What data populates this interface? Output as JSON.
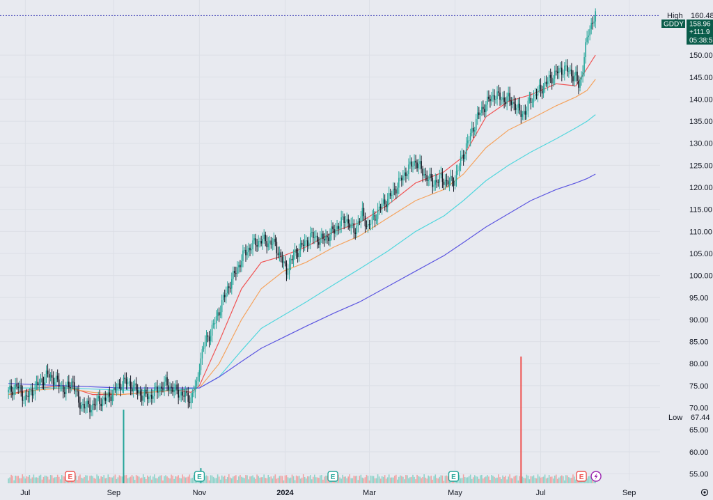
{
  "chart_data": {
    "type": "candlestick",
    "symbol": "GDDY",
    "y_axis_ticks": [
      "55.00",
      "60.00",
      "65.00",
      "70.00",
      "75.00",
      "80.00",
      "85.00",
      "90.00",
      "95.00",
      "100.00",
      "105.00",
      "110.00",
      "115.00",
      "120.00",
      "125.00",
      "130.00",
      "135.00",
      "140.00",
      "145.00",
      "150.00"
    ],
    "ylim": [
      53.5,
      162.5
    ],
    "x_axis_ticks": [
      {
        "label": "Jul",
        "day": 12,
        "bold": false
      },
      {
        "label": "Sep",
        "day": 75,
        "bold": false
      },
      {
        "label": "Nov",
        "day": 136,
        "bold": false
      },
      {
        "label": "2024",
        "day": 197,
        "bold": true
      },
      {
        "label": "Mar",
        "day": 257,
        "bold": false
      },
      {
        "label": "May",
        "day": 318,
        "bold": false
      },
      {
        "label": "Jul",
        "day": 379,
        "bold": false
      },
      {
        "label": "Sep",
        "day": 442,
        "bold": false
      }
    ],
    "xlim": [
      -6,
      464
    ],
    "high": {
      "label": "High",
      "value": "160.48",
      "numeric": 160.48
    },
    "low": {
      "label": "Low",
      "value": "67.44"
    },
    "last": {
      "value": "158.96",
      "change": "+111.9",
      "countdown": "05:38:5",
      "numeric": 158.96
    },
    "price_path": [
      [
        0,
        73.5
      ],
      [
        6,
        75
      ],
      [
        12,
        72
      ],
      [
        20,
        75
      ],
      [
        28,
        77.5
      ],
      [
        34,
        76
      ],
      [
        40,
        74
      ],
      [
        46,
        76
      ],
      [
        50,
        71
      ],
      [
        58,
        70
      ],
      [
        64,
        71.5
      ],
      [
        70,
        72
      ],
      [
        76,
        74
      ],
      [
        82,
        76
      ],
      [
        88,
        75
      ],
      [
        94,
        73
      ],
      [
        100,
        72.5
      ],
      [
        106,
        74
      ],
      [
        112,
        75.5
      ],
      [
        118,
        74
      ],
      [
        124,
        73
      ],
      [
        130,
        72
      ],
      [
        132,
        74
      ],
      [
        134,
        75
      ],
      [
        136,
        80
      ],
      [
        140,
        85
      ],
      [
        144,
        87
      ],
      [
        150,
        92
      ],
      [
        156,
        97
      ],
      [
        162,
        101
      ],
      [
        168,
        105
      ],
      [
        174,
        107
      ],
      [
        180,
        108
      ],
      [
        186,
        107.5
      ],
      [
        190,
        107
      ],
      [
        194,
        104
      ],
      [
        198,
        101
      ],
      [
        204,
        105
      ],
      [
        210,
        107
      ],
      [
        216,
        109
      ],
      [
        222,
        108
      ],
      [
        228,
        109
      ],
      [
        234,
        111
      ],
      [
        240,
        113
      ],
      [
        246,
        110
      ],
      [
        252,
        114
      ],
      [
        256,
        111
      ],
      [
        260,
        113
      ],
      [
        266,
        116
      ],
      [
        272,
        118
      ],
      [
        278,
        121
      ],
      [
        284,
        124
      ],
      [
        290,
        126
      ],
      [
        296,
        123
      ],
      [
        302,
        121
      ],
      [
        308,
        122
      ],
      [
        314,
        121
      ],
      [
        318,
        122
      ],
      [
        322,
        126
      ],
      [
        328,
        131
      ],
      [
        334,
        136
      ],
      [
        340,
        139
      ],
      [
        346,
        141
      ],
      [
        352,
        140
      ],
      [
        356,
        140
      ],
      [
        360,
        139
      ],
      [
        364,
        137
      ],
      [
        368,
        137
      ],
      [
        372,
        140
      ],
      [
        378,
        142
      ],
      [
        384,
        144
      ],
      [
        390,
        146
      ],
      [
        396,
        147
      ],
      [
        400,
        146
      ],
      [
        404,
        145
      ],
      [
        406,
        143
      ],
      [
        408,
        145
      ],
      [
        410,
        150
      ],
      [
        413,
        155
      ],
      [
        416,
        158
      ],
      [
        418,
        159
      ]
    ],
    "moving_averages": [
      {
        "color": "#f05454",
        "path": [
          [
            0,
            73
          ],
          [
            20,
            74.5
          ],
          [
            40,
            75
          ],
          [
            60,
            73
          ],
          [
            80,
            73
          ],
          [
            100,
            73.5
          ],
          [
            120,
            74
          ],
          [
            130,
            73.5
          ],
          [
            136,
            75
          ],
          [
            150,
            85
          ],
          [
            166,
            97
          ],
          [
            180,
            103
          ],
          [
            196,
            104.5
          ],
          [
            212,
            106.5
          ],
          [
            232,
            110
          ],
          [
            250,
            112
          ],
          [
            270,
            116
          ],
          [
            290,
            121
          ],
          [
            310,
            123.5
          ],
          [
            324,
            127
          ],
          [
            340,
            136
          ],
          [
            356,
            139.5
          ],
          [
            372,
            141
          ],
          [
            390,
            143.5
          ],
          [
            404,
            143
          ],
          [
            410,
            146
          ],
          [
            418,
            150
          ]
        ]
      },
      {
        "color": "#f5a25c",
        "path": [
          [
            0,
            73
          ],
          [
            20,
            74
          ],
          [
            40,
            74.5
          ],
          [
            60,
            73.5
          ],
          [
            80,
            73
          ],
          [
            100,
            73.5
          ],
          [
            120,
            74
          ],
          [
            136,
            74.5
          ],
          [
            150,
            80
          ],
          [
            166,
            90
          ],
          [
            180,
            97
          ],
          [
            196,
            101
          ],
          [
            212,
            103
          ],
          [
            232,
            106.5
          ],
          [
            250,
            109
          ],
          [
            270,
            113
          ],
          [
            290,
            117
          ],
          [
            310,
            119.5
          ],
          [
            324,
            123
          ],
          [
            340,
            129
          ],
          [
            356,
            133
          ],
          [
            372,
            135.5
          ],
          [
            390,
            138.5
          ],
          [
            404,
            140.5
          ],
          [
            412,
            142
          ],
          [
            418,
            144.5
          ]
        ]
      },
      {
        "color": "#50d6dd",
        "path": [
          [
            0,
            74.5
          ],
          [
            40,
            74.5
          ],
          [
            80,
            74
          ],
          [
            120,
            74
          ],
          [
            136,
            74.5
          ],
          [
            150,
            77
          ],
          [
            166,
            83
          ],
          [
            180,
            88
          ],
          [
            196,
            91
          ],
          [
            212,
            94
          ],
          [
            232,
            98
          ],
          [
            250,
            101.5
          ],
          [
            270,
            105.5
          ],
          [
            290,
            110
          ],
          [
            310,
            113.5
          ],
          [
            324,
            117
          ],
          [
            340,
            121.5
          ],
          [
            356,
            125
          ],
          [
            372,
            128
          ],
          [
            390,
            131
          ],
          [
            404,
            133.5
          ],
          [
            412,
            135
          ],
          [
            418,
            136.5
          ]
        ]
      },
      {
        "color": "#5b55e0",
        "path": [
          [
            0,
            75.5
          ],
          [
            40,
            75
          ],
          [
            80,
            74.5
          ],
          [
            120,
            74.5
          ],
          [
            136,
            74.5
          ],
          [
            150,
            77
          ],
          [
            166,
            80.5
          ],
          [
            180,
            83.5
          ],
          [
            196,
            86
          ],
          [
            212,
            88.5
          ],
          [
            232,
            91.5
          ],
          [
            250,
            94
          ],
          [
            270,
            97.5
          ],
          [
            290,
            101
          ],
          [
            310,
            104.5
          ],
          [
            324,
            107.5
          ],
          [
            340,
            111
          ],
          [
            356,
            114
          ],
          [
            372,
            117
          ],
          [
            390,
            119.5
          ],
          [
            404,
            121
          ],
          [
            412,
            122
          ],
          [
            418,
            123
          ]
        ]
      }
    ],
    "volume_spikes": [
      {
        "day": 82,
        "height_frac": 0.58,
        "color": "#26a69a"
      },
      {
        "day": 137,
        "height_frac": 0.12,
        "color": "#26a69a"
      },
      {
        "day": 365,
        "height_frac": 1.0,
        "color": "#ef5350"
      }
    ],
    "events": [
      {
        "day": 44,
        "label": "E",
        "color": "#ef5350"
      },
      {
        "day": 136,
        "label": "E",
        "color": "#26a69a"
      },
      {
        "day": 231,
        "label": "E",
        "color": "#26a69a"
      },
      {
        "day": 317,
        "label": "E",
        "color": "#26a69a"
      },
      {
        "day": 408,
        "label": "E",
        "color": "#ef5350"
      }
    ],
    "colors": {
      "up": "#26a69a",
      "down": "#131722",
      "axis_text": "#131722",
      "tag_bg": "#0a5c4a",
      "grid": "#dcdfe6",
      "bg": "#e8eaf0",
      "flash": "#9c27b0"
    }
  }
}
